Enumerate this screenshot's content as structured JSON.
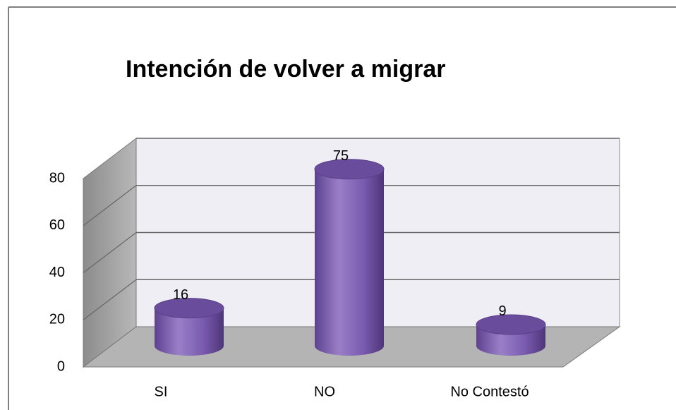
{
  "chart_data": {
    "type": "bar",
    "title": "Intención de volver a migrar",
    "categories": [
      "SI",
      "NO",
      "No Contestó"
    ],
    "values": [
      16,
      75,
      9
    ],
    "color": "#7f5fb0",
    "ylim": [
      0,
      80
    ],
    "yticks": [
      0,
      20,
      40,
      60,
      80
    ],
    "grid": true
  }
}
